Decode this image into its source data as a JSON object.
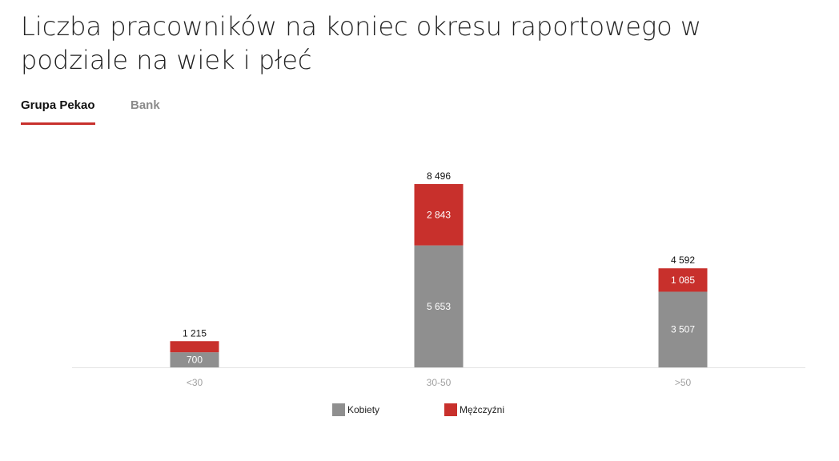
{
  "title": "Liczba pracowników na koniec okresu raportowego w podziale na wiek i płeć",
  "tabs": [
    {
      "label": "Grupa Pekao",
      "active": true
    },
    {
      "label": "Bank",
      "active": false
    }
  ],
  "colors": {
    "accent": "#c8302c",
    "kobiety": "#8f8f8f",
    "mezczyzni": "#c8302c",
    "axis_text": "#a0a0a0"
  },
  "chart_data": {
    "type": "bar",
    "stacked": true,
    "categories": [
      "<30",
      "30-50",
      ">50"
    ],
    "series": [
      {
        "name": "Kobiety",
        "values": [
          700,
          5653,
          3507
        ]
      },
      {
        "name": "Mężczyźni",
        "values": [
          515,
          2843,
          1085
        ]
      }
    ],
    "totals": [
      "1 215",
      "8 496",
      "4 592"
    ],
    "segment_labels": [
      [
        "700",
        "5 653",
        "3 507"
      ],
      [
        "",
        "2 843",
        "1 085"
      ]
    ],
    "ylim": [
      0,
      8496
    ],
    "grid": false,
    "legend_position": "bottom"
  },
  "legend": [
    {
      "label": "Kobiety",
      "icon": "gray-square-icon"
    },
    {
      "label": "Mężczyźni",
      "icon": "red-square-icon"
    }
  ]
}
